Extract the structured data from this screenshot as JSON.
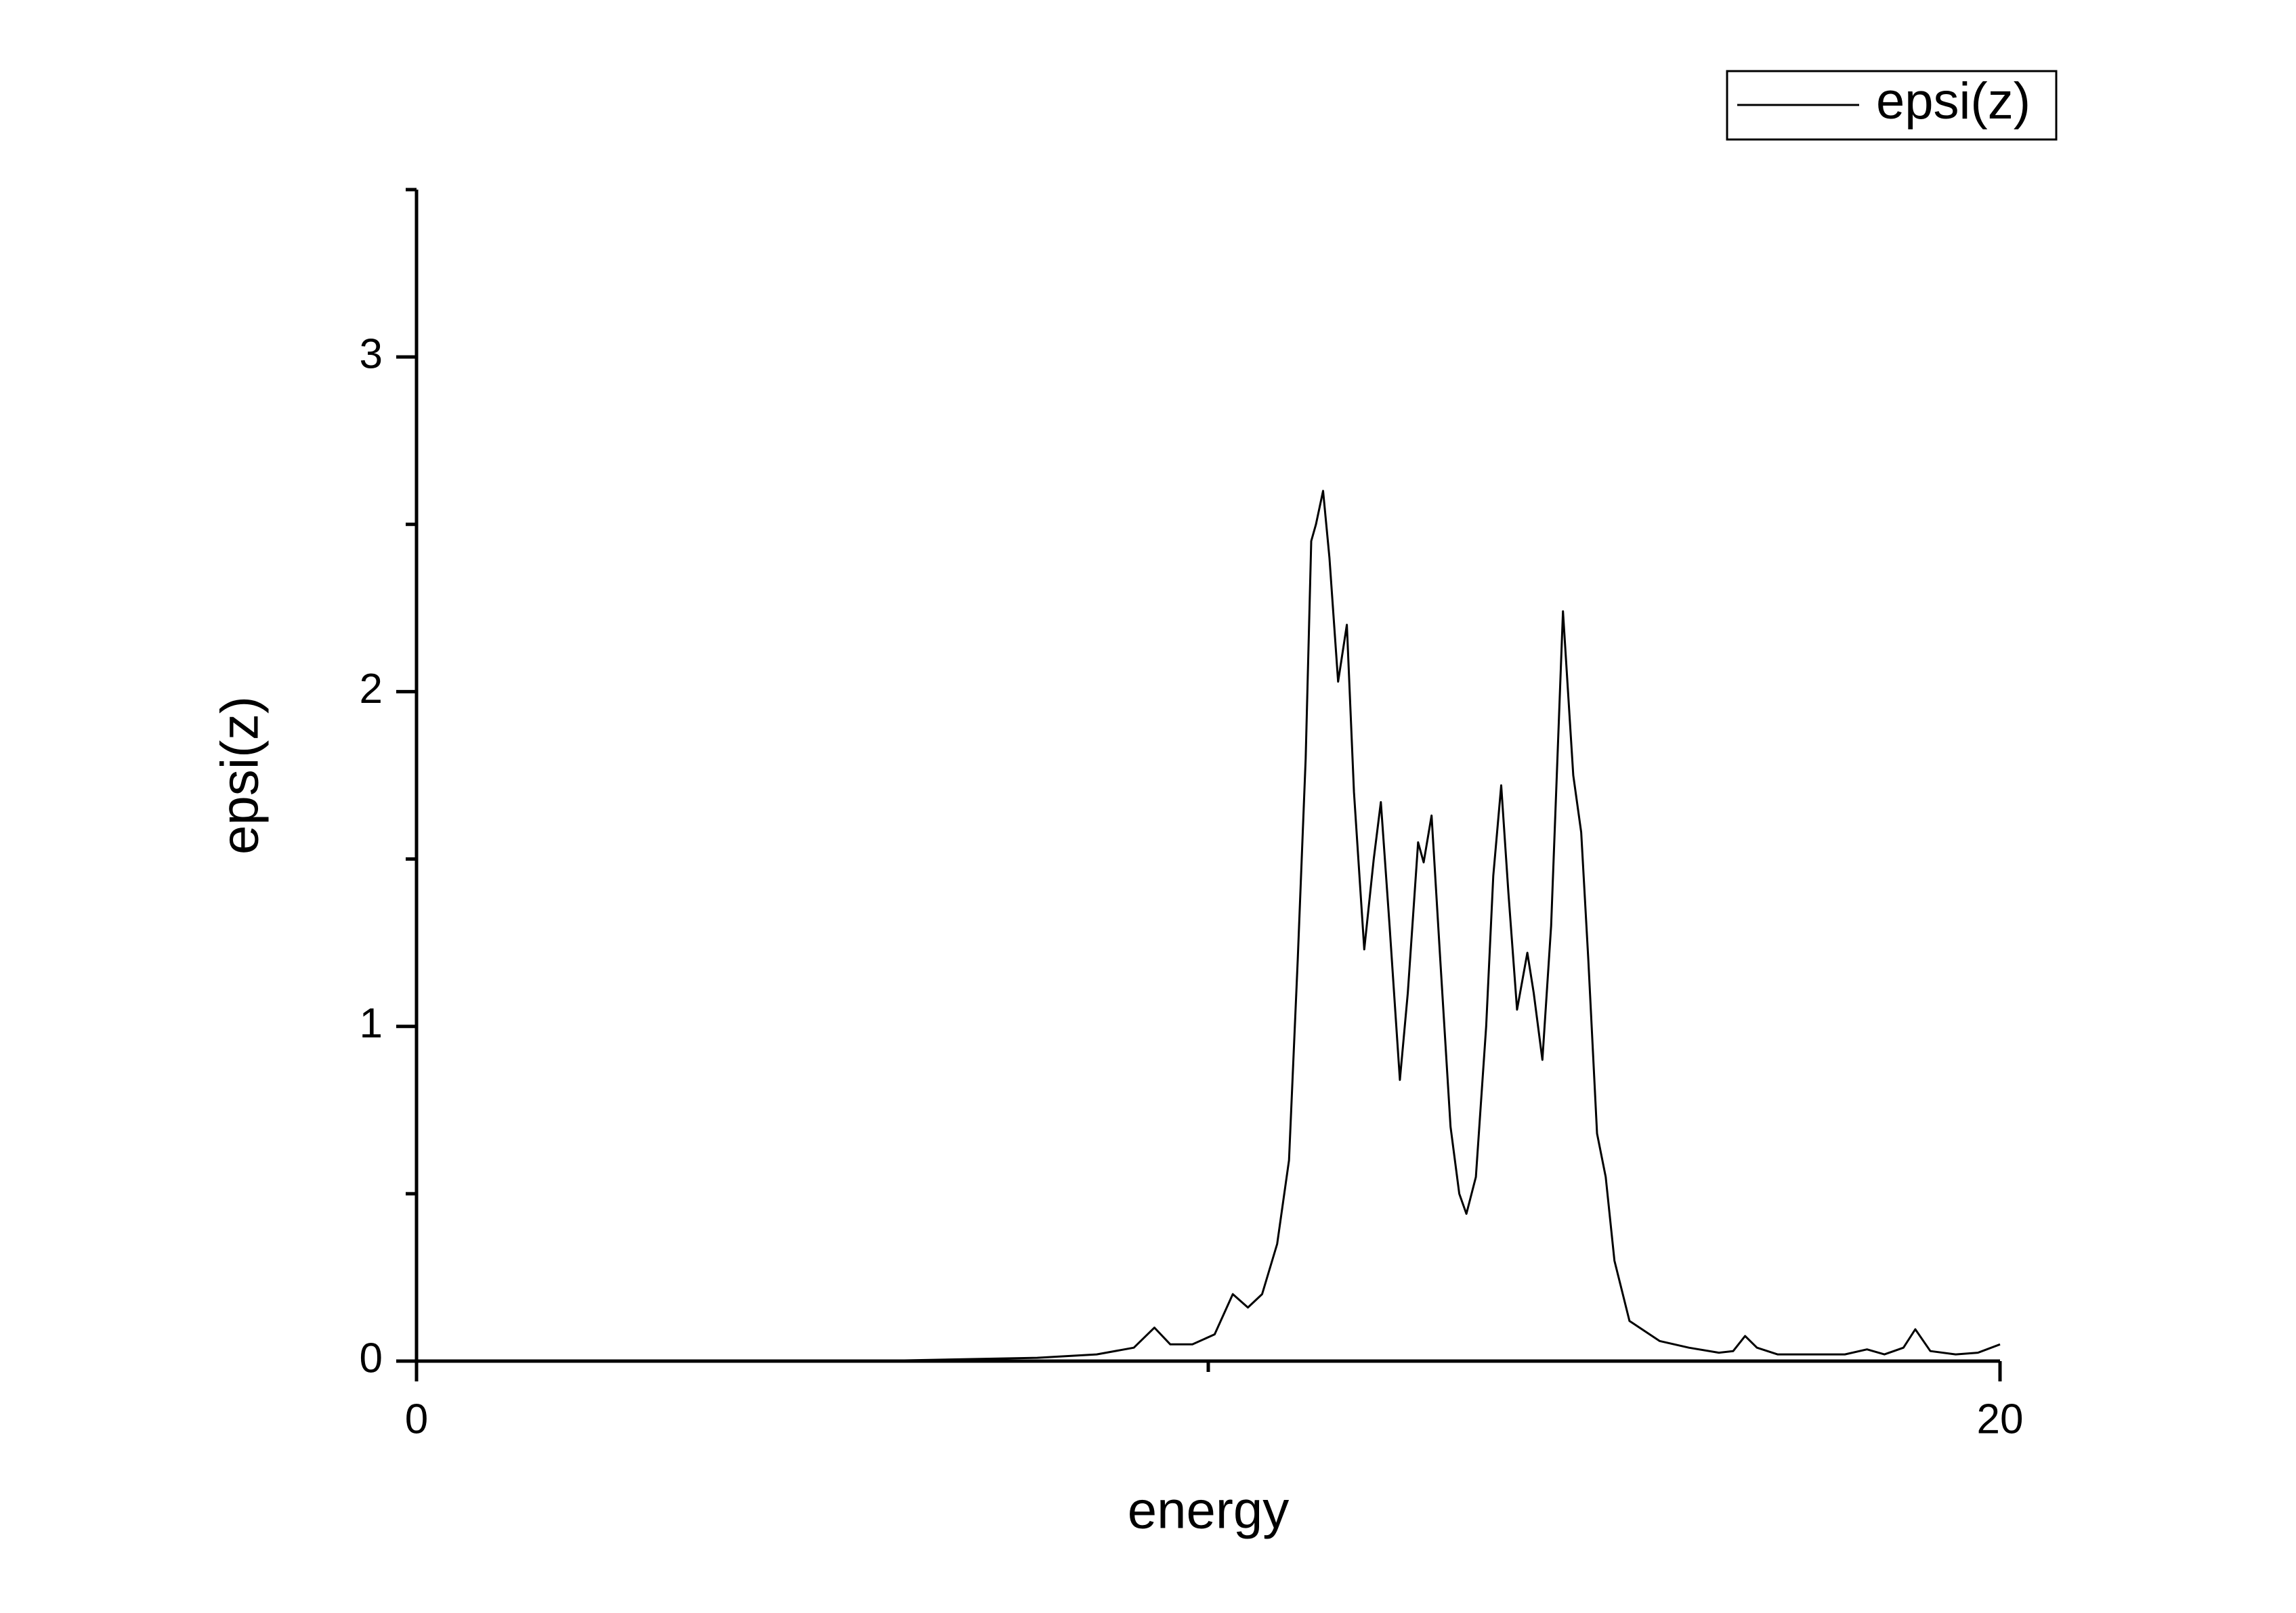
{
  "chart_data": {
    "type": "line",
    "x_label": "energy",
    "y_label": "epsi(z)",
    "xlim": [
      0,
      20
    ],
    "ylim": [
      0,
      3.5
    ],
    "xticks": [
      0,
      20
    ],
    "xminorticks": [
      10
    ],
    "yticks": [
      0,
      1,
      2,
      3
    ],
    "yminorticks": [
      0.5,
      1.5,
      2.5,
      3.5
    ],
    "legend": "top-right",
    "series": [
      {
        "name": "epsi(z)",
        "color": "#000000",
        "x": [
          0,
          6,
          6.16,
          7.84,
          8.59,
          9.06,
          9.32,
          9.52,
          9.8,
          10.08,
          10.31,
          10.5,
          10.68,
          10.87,
          11.02,
          11.13,
          11.23,
          11.3,
          11.36,
          11.45,
          11.53,
          11.64,
          11.75,
          11.84,
          11.97,
          12.09,
          12.18,
          12.29,
          12.42,
          12.52,
          12.65,
          12.72,
          12.82,
          12.93,
          13.06,
          13.17,
          13.26,
          13.38,
          13.51,
          13.6,
          13.7,
          13.79,
          13.9,
          14.03,
          14.11,
          14.22,
          14.33,
          14.48,
          14.61,
          14.71,
          14.8,
          14.91,
          15.02,
          15.13,
          15.32,
          15.7,
          16.07,
          16.45,
          16.63,
          16.78,
          16.93,
          17.19,
          17.75,
          18.04,
          18.32,
          18.54,
          18.78,
          18.93,
          19.12,
          19.44,
          19.72,
          20
        ],
        "values": [
          0,
          0,
          0.002,
          0.01,
          0.02,
          0.04,
          0.1,
          0.05,
          0.05,
          0.08,
          0.2,
          0.16,
          0.2,
          0.35,
          0.6,
          1.2,
          1.8,
          2.45,
          2.5,
          2.6,
          2.4,
          2.03,
          2.2,
          1.7,
          1.23,
          1.5,
          1.67,
          1.3,
          0.84,
          1.1,
          1.55,
          1.49,
          1.63,
          1.2,
          0.7,
          0.5,
          0.44,
          0.55,
          1.0,
          1.45,
          1.72,
          1.4,
          1.05,
          1.22,
          1.1,
          0.9,
          1.3,
          2.24,
          1.75,
          1.58,
          1.2,
          0.68,
          0.55,
          0.3,
          0.12,
          0.06,
          0.04,
          0.025,
          0.03,
          0.075,
          0.04,
          0.02,
          0.02,
          0.02,
          0.035,
          0.02,
          0.04,
          0.095,
          0.03,
          0.02,
          0.025,
          0.05
        ]
      }
    ]
  }
}
